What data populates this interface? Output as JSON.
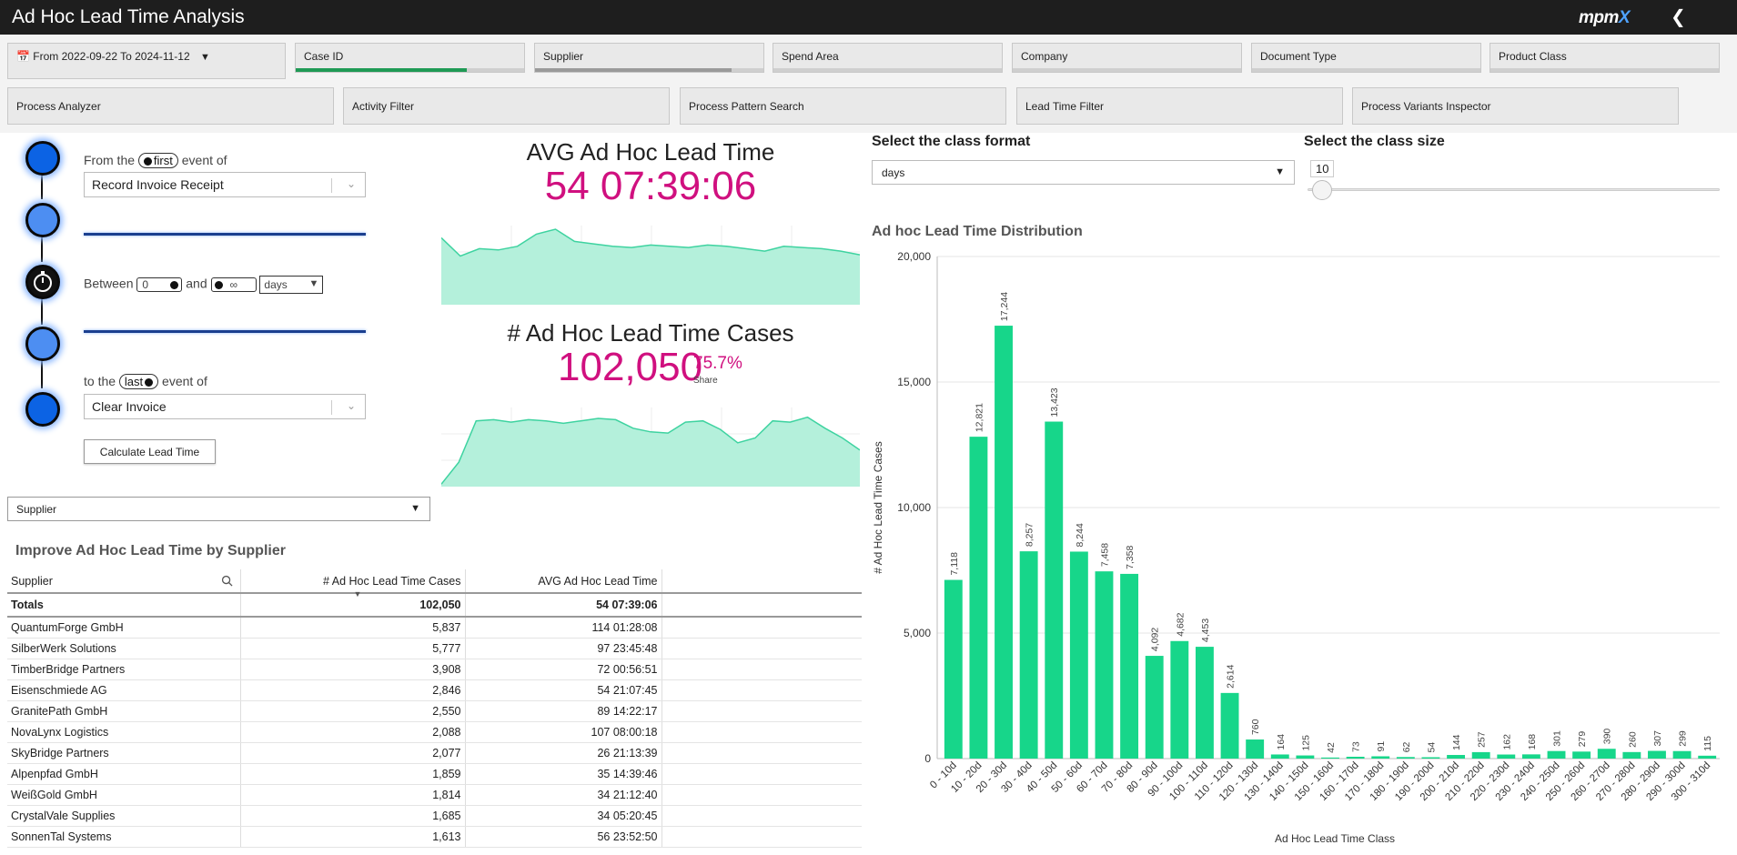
{
  "app": {
    "title": "Ad Hoc Lead Time Analysis",
    "logo_text": "mpm",
    "logo_accent": "X",
    "back_icon": "chevron-left-icon"
  },
  "filters": {
    "date_range": "From 2022-09-22 To 2024-11-12",
    "fields": [
      {
        "label": "Case ID",
        "selected_fraction": 0.75,
        "bar_color": "#1f9a55"
      },
      {
        "label": "Supplier",
        "selected_fraction": 0.86,
        "bar_color": "#9a9a9a"
      },
      {
        "label": "Spend Area",
        "selected_fraction": 0,
        "bar_color": "#1f9a55"
      },
      {
        "label": "Company",
        "selected_fraction": 0,
        "bar_color": "#1f9a55"
      },
      {
        "label": "Document Type",
        "selected_fraction": 0,
        "bar_color": "#1f9a55"
      },
      {
        "label": "Product Class",
        "selected_fraction": 0,
        "bar_color": "#1f9a55"
      }
    ],
    "apps": [
      "Process Analyzer",
      "Activity Filter",
      "Process Pattern Search",
      "Lead Time Filter",
      "Process Variants Inspector"
    ]
  },
  "lead_time_config": {
    "from_prefix": "From the",
    "from_occurrence": "first",
    "from_suffix": "event of",
    "from_event": "Record Invoice Receipt",
    "between_label": "Between",
    "min_value": "0",
    "and_label": "and",
    "max_value": "∞",
    "unit": "days",
    "to_prefix": "to the",
    "to_occurrence": "last",
    "to_suffix": "event of",
    "to_event": "Clear Invoice",
    "calculate_label": "Calculate Lead Time"
  },
  "kpis": {
    "avg_title": "AVG Ad Hoc Lead Time",
    "avg_value": "54 07:39:06",
    "cases_title": "# Ad Hoc Lead Time Cases",
    "cases_value": "102,050",
    "share_value": "75.7%",
    "share_label": "Share",
    "accent_color": "#d0107f",
    "spark_color": "#3ed3a0",
    "spark_fill": "#b4f0db"
  },
  "spark_avg": [
    55,
    40,
    46,
    45,
    48,
    58,
    62,
    52,
    50,
    48,
    47,
    49,
    48,
    47,
    49,
    48,
    46,
    44,
    48,
    47,
    46,
    44,
    41
  ],
  "spark_cases": [
    2,
    20,
    54,
    55,
    53,
    55,
    54,
    52,
    54,
    56,
    55,
    48,
    45,
    44,
    53,
    54,
    47,
    36,
    40,
    54,
    53,
    57,
    48,
    40,
    30
  ],
  "dimension_selector": {
    "value": "Supplier"
  },
  "table": {
    "title": "Improve Ad Hoc Lead Time by Supplier",
    "columns": [
      "Supplier",
      "# Ad Hoc Lead Time Cases",
      "AVG Ad Hoc Lead Time"
    ],
    "totals": {
      "label": "Totals",
      "cases": "102,050",
      "avg": "54 07:39:06"
    },
    "rows": [
      {
        "supplier": "QuantumForge GmbH",
        "cases": "5,837",
        "avg": "114 01:28:08"
      },
      {
        "supplier": "SilberWerk Solutions",
        "cases": "5,777",
        "avg": "97 23:45:48"
      },
      {
        "supplier": "TimberBridge Partners",
        "cases": "3,908",
        "avg": "72 00:56:51"
      },
      {
        "supplier": "Eisenschmiede AG",
        "cases": "2,846",
        "avg": "54 21:07:45"
      },
      {
        "supplier": "GranitePath GmbH",
        "cases": "2,550",
        "avg": "89 14:22:17"
      },
      {
        "supplier": "NovaLynx Logistics",
        "cases": "2,088",
        "avg": "107 08:00:18"
      },
      {
        "supplier": "SkyBridge Partners",
        "cases": "2,077",
        "avg": "26 21:13:39"
      },
      {
        "supplier": "Alpenpfad GmbH",
        "cases": "1,859",
        "avg": "35 14:39:46"
      },
      {
        "supplier": "WeißGold GmbH",
        "cases": "1,814",
        "avg": "34 21:12:40"
      },
      {
        "supplier": "CrystalVale Supplies",
        "cases": "1,685",
        "avg": "34 05:20:45"
      },
      {
        "supplier": "SonnenTal Systems",
        "cases": "1,613",
        "avg": "56 23:52:50"
      }
    ]
  },
  "class_format": {
    "title": "Select the class format",
    "value": "days"
  },
  "class_size": {
    "title": "Select the class size",
    "value": "10",
    "slider_fraction": 0.02
  },
  "chart_data": {
    "type": "bar",
    "title": "Ad hoc Lead Time Distribution",
    "xlabel": "Ad Hoc Lead Time Class",
    "ylabel": "# Ad Hoc Lead Time Cases",
    "ylim": [
      0,
      20000
    ],
    "yticks": [
      "0",
      "5,000",
      "10,000",
      "15,000",
      "20,000"
    ],
    "grid": true,
    "bar_color": "#17d68a",
    "categories": [
      "0 - 10d",
      "10 - 20d",
      "20 - 30d",
      "30 - 40d",
      "40 - 50d",
      "50 - 60d",
      "60 - 70d",
      "70 - 80d",
      "80 - 90d",
      "90 - 100d",
      "100 - 110d",
      "110 - 120d",
      "120 - 130d",
      "130 - 140d",
      "140 - 150d",
      "150 - 160d",
      "160 - 170d",
      "170 - 180d",
      "180 - 190d",
      "190 - 200d",
      "200 - 210d",
      "210 - 220d",
      "220 - 230d",
      "230 - 240d",
      "240 - 250d",
      "250 - 260d",
      "260 - 270d",
      "270 - 280d",
      "280 - 290d",
      "290 - 300d",
      "300 - 310d"
    ],
    "values": [
      7118,
      12821,
      17244,
      8257,
      13423,
      8244,
      7458,
      7358,
      4092,
      4682,
      4453,
      2614,
      760,
      164,
      125,
      42,
      73,
      91,
      62,
      54,
      144,
      257,
      162,
      168,
      301,
      279,
      390,
      260,
      307,
      299,
      115
    ],
    "labels": [
      "7,118",
      "12,821",
      "17,244",
      "8,257",
      "13,423",
      "8,244",
      "7,458",
      "7,358",
      "4,092",
      "4,682",
      "4,453",
      "2,614",
      "760",
      "164",
      "125",
      "42",
      "73",
      "91",
      "62",
      "54",
      "144",
      "257",
      "162",
      "168",
      "301",
      "279",
      "390",
      "260",
      "307",
      "299",
      "115"
    ]
  }
}
